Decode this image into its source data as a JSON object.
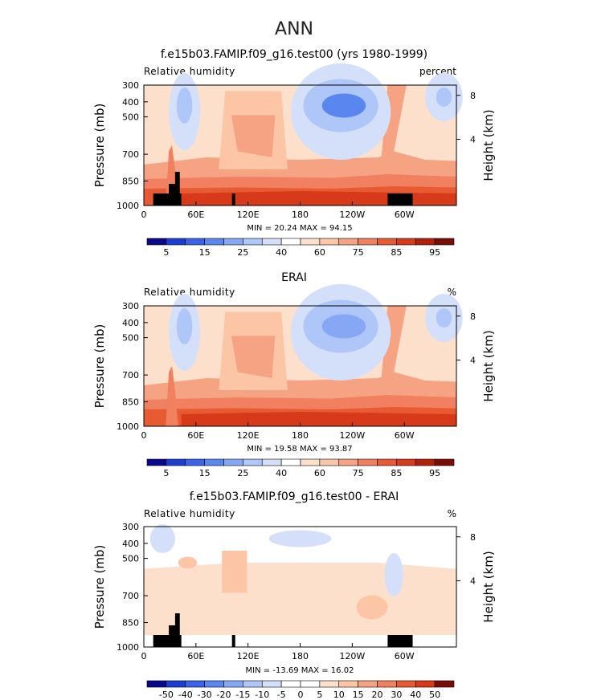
{
  "figure_title": "ANN",
  "chart_data": [
    {
      "type": "heatmap",
      "title": "f.e15b03.FAMIP.f09_g16.test00 (yrs 1980-1999)",
      "left_label": "Relative humidity",
      "right_label": "percent",
      "ylabel": "Pressure (mb)",
      "ylabel_right": "Height (km)",
      "y_ticks": [
        "300",
        "400",
        "500",
        "700",
        "850",
        "1000"
      ],
      "y_ticks_right": [
        "8",
        "4"
      ],
      "x_ticks": [
        "0",
        "60E",
        "120E",
        "180",
        "120W",
        "60W"
      ],
      "stats": {
        "min": "20.24",
        "max": "94.15"
      },
      "colorbar_labels": [
        "5",
        "15",
        "25",
        "40",
        "60",
        "75",
        "85",
        "95"
      ],
      "topography": true
    },
    {
      "type": "heatmap",
      "title": "ERAI",
      "left_label": "Relative humidity",
      "right_label": "%",
      "ylabel": "Pressure (mb)",
      "ylabel_right": "Height (km)",
      "y_ticks": [
        "300",
        "400",
        "500",
        "700",
        "850",
        "1000"
      ],
      "y_ticks_right": [
        "8",
        "4"
      ],
      "x_ticks": [
        "0",
        "60E",
        "120E",
        "180",
        "120W",
        "60W"
      ],
      "stats": {
        "min": "19.58",
        "max": "93.87"
      },
      "colorbar_labels": [
        "5",
        "15",
        "25",
        "40",
        "60",
        "75",
        "85",
        "95"
      ],
      "topography": false
    },
    {
      "type": "heatmap",
      "title": "f.e15b03.FAMIP.f09_g16.test00 - ERAI",
      "left_label": "Relative humidity",
      "right_label": "%",
      "ylabel": "Pressure (mb)",
      "ylabel_right": "Height (km)",
      "y_ticks": [
        "300",
        "400",
        "500",
        "700",
        "850",
        "1000"
      ],
      "y_ticks_right": [
        "8",
        "4"
      ],
      "x_ticks": [
        "0",
        "60E",
        "120E",
        "180",
        "120W",
        "60W"
      ],
      "stats": {
        "min": "-13.69",
        "max": "16.02"
      },
      "colorbar_labels": [
        "-50",
        "-40",
        "-30",
        "-20",
        "-15",
        "-10",
        "-5",
        "0",
        "5",
        "10",
        "15",
        "20",
        "30",
        "40",
        "50"
      ],
      "topography": true
    }
  ],
  "colors": {
    "scale_abs": [
      "#08088a",
      "#1a3fd0",
      "#3a63e8",
      "#5a86f0",
      "#86a8f4",
      "#aec6f8",
      "#d4e0fa",
      "#ffffff",
      "#fde0cc",
      "#fcc6a6",
      "#f6a383",
      "#f0805f",
      "#e85a32",
      "#d63a1a",
      "#b2200c",
      "#7a0c06"
    ],
    "scale_diff": [
      "#08088a",
      "#1a3fd0",
      "#3a63e8",
      "#5a86f0",
      "#86a8f4",
      "#aec6f8",
      "#d4e0fa",
      "#ffffff",
      "#ffffff",
      "#fde0cc",
      "#fcc6a6",
      "#f6a383",
      "#f0805f",
      "#e85a32",
      "#d63a1a",
      "#7a0c06"
    ],
    "topography": "#000000"
  }
}
